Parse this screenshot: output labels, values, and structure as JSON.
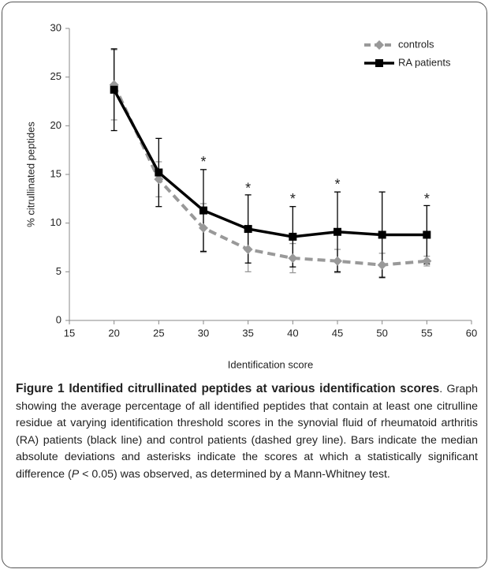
{
  "chart_data": {
    "type": "line",
    "x_label": "Identification score",
    "y_label": "% citrullinated peptides",
    "x": [
      20,
      25,
      30,
      35,
      40,
      45,
      50,
      55
    ],
    "series": [
      {
        "name": "controls",
        "color": "#999999",
        "dashed": true,
        "marker": "diamond",
        "values": [
          24.2,
          14.5,
          9.5,
          7.3,
          6.4,
          6.1,
          5.7,
          6.1
        ],
        "errors": [
          3.6,
          1.8,
          2.5,
          2.3,
          1.5,
          1.2,
          1.2,
          0.5
        ]
      },
      {
        "name": "RA patients",
        "color": "#000000",
        "dashed": false,
        "marker": "square",
        "values": [
          23.7,
          15.2,
          11.3,
          9.4,
          8.6,
          9.1,
          8.8,
          8.8
        ],
        "errors": [
          4.2,
          3.5,
          4.2,
          3.5,
          3.1,
          4.1,
          4.4,
          3.0
        ]
      }
    ],
    "annotations": [
      {
        "x": 30,
        "y": 16.2,
        "text": "*"
      },
      {
        "x": 35,
        "y": 13.5,
        "text": "*"
      },
      {
        "x": 40,
        "y": 12.4,
        "text": "*"
      },
      {
        "x": 45,
        "y": 13.9,
        "text": "*"
      },
      {
        "x": 55,
        "y": 12.4,
        "text": "*"
      }
    ],
    "xlim": [
      15,
      60
    ],
    "xticks": [
      15,
      20,
      25,
      30,
      35,
      40,
      45,
      50,
      55,
      60
    ],
    "ylim": [
      0,
      30
    ],
    "yticks": [
      0,
      5,
      10,
      15,
      20,
      25,
      30
    ],
    "grid": false,
    "legend": "top-right"
  },
  "caption": {
    "label": "Figure 1 Identified citrullinated peptides at various identification scores",
    "text_before": ". Graph showing the average percentage of all identified peptides that contain at least one citrulline residue at varying identification threshold scores in the synovial fluid of rheumatoid arthritis (RA) patients (black line) and control patients (dashed grey line). Bars indicate the median absolute deviations and asterisks indicate the scores at which a statistically significant difference (",
    "italic": "P",
    "text_after": " < 0.05) was observed, as determined by a Mann-Whitney test."
  }
}
